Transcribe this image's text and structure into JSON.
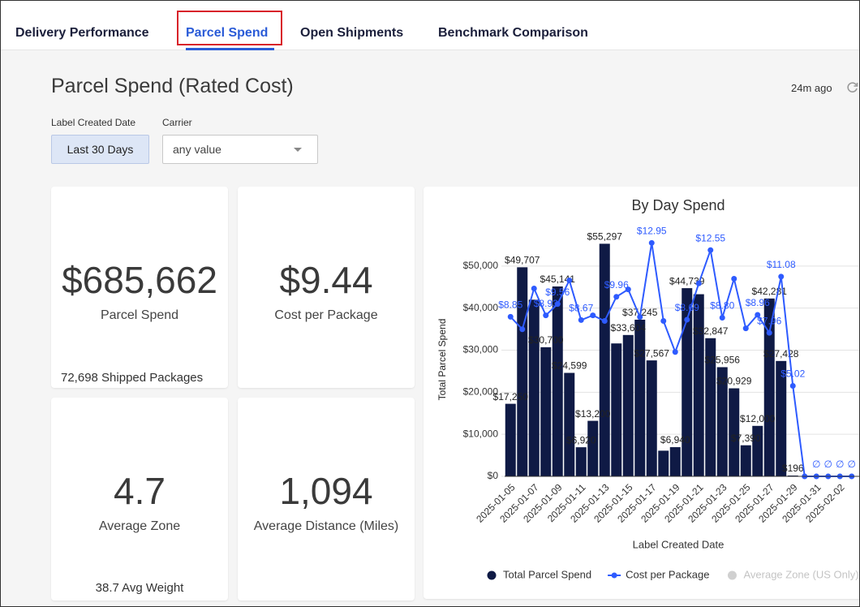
{
  "tabs": [
    "Delivery Performance",
    "Parcel Spend",
    "Open Shipments",
    "Benchmark Comparison"
  ],
  "active_tab": 1,
  "header": {
    "title": "Parcel Spend (Rated Cost)",
    "updated": "24m ago"
  },
  "filters": [
    {
      "label": "Label Created Date",
      "value": "Last 30 Days"
    },
    {
      "label": "Carrier",
      "value": "any value"
    }
  ],
  "kpis": [
    {
      "value": "$685,662",
      "label": "Parcel Spend",
      "footer": "72,698 Shipped Packages"
    },
    {
      "value": "$9.44",
      "label": "Cost per Package"
    },
    {
      "value": "4.7",
      "label": "Average Zone",
      "footer": "38.7 Avg Weight"
    },
    {
      "value": "1,094",
      "label": "Average Distance (Miles)"
    }
  ],
  "chart_data": {
    "type": "bar_line",
    "title": "By Day Spend",
    "x_label": "Label Created Date",
    "y_label": "Total Parcel Spend",
    "categories": [
      "2025-01-05",
      null,
      "2025-01-07",
      null,
      "2025-01-09",
      null,
      "2025-01-11",
      null,
      "2025-01-13",
      null,
      "2025-01-15",
      null,
      "2025-01-17",
      null,
      "2025-01-19",
      null,
      "2025-01-21",
      null,
      "2025-01-23",
      null,
      "2025-01-25",
      null,
      "2025-01-27",
      null,
      "2025-01-29",
      null,
      "2025-01-31",
      null,
      "2025-02-02",
      null
    ],
    "ylim": [
      0,
      60000
    ],
    "yticks": [
      {
        "value": 0,
        "label": "$0"
      },
      {
        "value": 10000,
        "label": "$10,000"
      },
      {
        "value": 20000,
        "label": "$20,000"
      },
      {
        "value": 30000,
        "label": "$30,000"
      },
      {
        "value": 40000,
        "label": "$40,000"
      },
      {
        "value": 50000,
        "label": "$50,000"
      }
    ],
    "y2lim": [
      0,
      14
    ],
    "grid": true,
    "series": [
      {
        "name": "Total Parcel Spend",
        "color": "#0f1a45",
        "kind": "bar",
        "values": [
          17250,
          49707,
          42000,
          30700,
          45141,
          24599,
          6920,
          13200,
          55297,
          31600,
          33604,
          37245,
          27567,
          6100,
          6940,
          44739,
          43300,
          32847,
          25956,
          20929,
          7390,
          12000,
          42281,
          27428,
          196,
          0,
          0,
          0,
          0,
          0
        ],
        "value_labels": [
          "$17,250",
          "$49,707",
          null,
          "$30,700",
          "$45,141",
          "$24,599",
          "$6,920",
          "$13,200",
          "$55,297",
          null,
          "$33,604",
          "$37,245",
          "$27,567",
          null,
          "$6,940",
          "$44,739",
          null,
          "$32,847",
          "$25,956",
          "$20,929",
          "$7,390",
          "$12,000",
          "$42,281",
          "$27,428",
          "$196",
          null,
          null,
          null,
          null,
          null
        ]
      },
      {
        "name": "Cost per Package",
        "color": "#2e5bff",
        "kind": "line",
        "axis": "y2",
        "values": [
          8.85,
          8.16,
          10.42,
          8.93,
          9.56,
          10.87,
          8.67,
          8.93,
          8.62,
          9.96,
          10.37,
          8.84,
          12.95,
          8.62,
          6.9,
          8.69,
          10.7,
          12.55,
          8.8,
          10.96,
          8.21,
          8.96,
          7.96,
          11.08,
          5.02,
          0,
          0,
          0,
          0,
          0
        ],
        "value_labels": [
          "$8.85",
          null,
          null,
          "$8.93",
          "$9.56",
          null,
          "$8.67",
          null,
          null,
          "$9.96",
          null,
          null,
          "$12.95",
          null,
          null,
          "$8.69",
          null,
          "$12.55",
          "$8.80",
          null,
          null,
          "$8.96",
          "$7.96",
          "$11.08",
          "$5.02",
          null,
          "∅",
          "∅",
          "∅",
          "∅"
        ]
      }
    ],
    "legend_inactive": [
      {
        "name": "Average Zone (US Only)",
        "color": "#d0d0d0"
      }
    ]
  }
}
